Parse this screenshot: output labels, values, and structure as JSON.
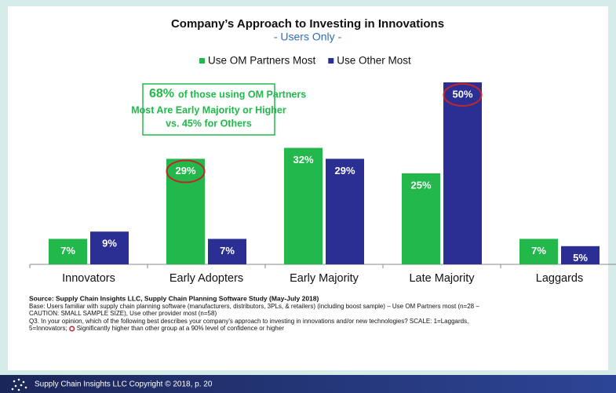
{
  "chart_data": {
    "type": "bar",
    "title": "Company’s Approach to Investing in Innovations",
    "subtitle": "- Users Only -",
    "categories": [
      "Innovators",
      "Early Adopters",
      "Early Majority",
      "Late Majority",
      "Laggards"
    ],
    "series": [
      {
        "name": "Use OM Partners Most",
        "color": "#22b84b",
        "values": [
          7,
          29,
          32,
          25,
          7
        ],
        "value_labels": [
          "7%",
          "29%",
          "32%",
          "25%",
          "7%"
        ],
        "significant": [
          false,
          true,
          false,
          false,
          false
        ]
      },
      {
        "name": "Use Other Most",
        "color": "#2b2f93",
        "values": [
          9,
          7,
          29,
          50,
          5
        ],
        "value_labels": [
          "9%",
          "7%",
          "29%",
          "50%",
          "5%"
        ],
        "significant": [
          false,
          false,
          false,
          true,
          false
        ]
      }
    ],
    "ylim": [
      0,
      50
    ],
    "annotation": {
      "highlight": "68%",
      "lines": [
        "of those using OM Partners",
        "Most Are Early Majority or Higher",
        "vs. 45% for Others"
      ]
    },
    "source": [
      "Source:  Supply Chain Insights LLC, Supply Chain Planning Software Study (May-July 2018)",
      "Base: Users familiar with supply chain planning software (manufacturers, distributors, 3PLs, & retailers) (including boost sample) – Use OM Partners most (n=28 –",
      "CAUTION: SMALL SAMPLE SIZE), Use other provider most (n=58)",
      "Q3. In your opinion, which of the following best describes your company's approach to investing in innovations and/or new technologies? SCALE: 1=Laggards,",
      "5=Innovators;",
      "Significantly higher than other group at a 90% level of confidence or higher"
    ],
    "footer": "Supply Chain Insights LLC Copyright © 2018, p. 20"
  }
}
